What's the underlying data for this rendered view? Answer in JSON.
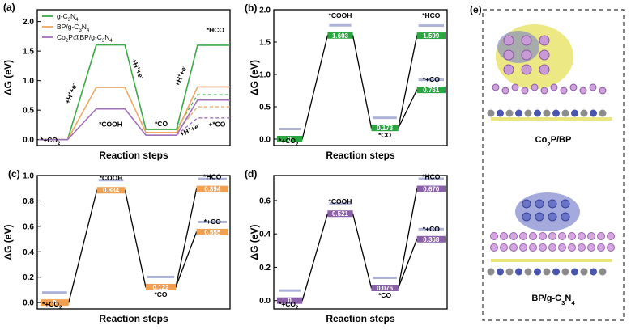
{
  "colors": {
    "g_c3n4": "#3daa48",
    "bp": "#f0a860",
    "co2p": "#a070b8",
    "panel_b": "#2aa640",
    "panel_c": "#f0a050",
    "panel_d": "#8a60a8"
  },
  "chart_data": [
    {
      "panel": "(a)",
      "type": "line",
      "subtype": "free-energy-step-diagram",
      "xlabel": "Reaction steps",
      "ylabel": "ΔG (eV)",
      "ylim": [
        -0.1,
        2.2
      ],
      "yticks": [
        "0.0",
        "0.5",
        "1.0",
        "1.5",
        "2.0"
      ],
      "steps": [
        "*+CO2",
        "*COOH",
        "*CO",
        "*HCO"
      ],
      "series": [
        {
          "name": "g-C3N4",
          "values": [
            0,
            1.603,
            0.173,
            1.599
          ],
          "alt_value": 0.761,
          "color": "#3daa48"
        },
        {
          "name": "BP/g-C3N4",
          "values": [
            0,
            0.884,
            0.122,
            0.894
          ],
          "alt_value": 0.555,
          "color": "#f0a860"
        },
        {
          "name": "Co2P@BP/g-C3N4",
          "values": [
            0,
            0.521,
            0.076,
            0.67
          ],
          "alt_value": 0.368,
          "color": "#a070b8"
        }
      ],
      "annotations": [
        "*+CO2",
        "*COOH",
        "*CO",
        "*HCO",
        "+H⁺+e⁻",
        "+H⁺+e⁻",
        "+H⁺+e⁻",
        "+H⁺+e⁻",
        "+*CO"
      ],
      "legend_position": "top-left"
    },
    {
      "panel": "(b)",
      "type": "line",
      "subtype": "free-energy-step-diagram",
      "xlabel": "Reaction steps",
      "ylabel": "ΔG (eV)",
      "ylim": [
        -0.1,
        2.0
      ],
      "yticks": [
        "0.0",
        "0.5",
        "1.0",
        "1.5",
        "2.0"
      ],
      "levels": [
        {
          "label": "*+CO2",
          "value": 0,
          "text": "0"
        },
        {
          "label": "*COOH",
          "value": 1.603,
          "text": "1.603"
        },
        {
          "label": "*CO",
          "value": 0.173,
          "text": "0.173"
        },
        {
          "label": "*HCO",
          "value": 1.599,
          "text": "1.599"
        },
        {
          "label": "*+CO",
          "value": 0.761,
          "text": "0.761"
        }
      ],
      "color": "#2aa640"
    },
    {
      "panel": "(c)",
      "type": "line",
      "subtype": "free-energy-step-diagram",
      "xlabel": "Reaction steps",
      "ylabel": "ΔG (eV)",
      "ylim": [
        -0.05,
        1.0
      ],
      "yticks": [
        "0.0",
        "0.2",
        "0.4",
        "0.6",
        "0.8",
        "1.0"
      ],
      "levels": [
        {
          "label": "*+CO2",
          "value": 0,
          "text": "0"
        },
        {
          "label": "*COOH",
          "value": 0.884,
          "text": "0.884"
        },
        {
          "label": "*CO",
          "value": 0.122,
          "text": "0.122"
        },
        {
          "label": "*HCO",
          "value": 0.894,
          "text": "0.894"
        },
        {
          "label": "*+CO",
          "value": 0.555,
          "text": "0.555"
        }
      ],
      "color": "#f0a050"
    },
    {
      "panel": "(d)",
      "type": "line",
      "subtype": "free-energy-step-diagram",
      "xlabel": "Reaction steps",
      "ylabel": "ΔG (eV)",
      "ylim": [
        -0.05,
        0.75
      ],
      "yticks": [
        "0.0",
        "0.2",
        "0.4",
        "0.6"
      ],
      "levels": [
        {
          "label": "*+CO2",
          "value": 0,
          "text": "0"
        },
        {
          "label": "*COOH",
          "value": 0.521,
          "text": "0.521"
        },
        {
          "label": "*CO",
          "value": 0.076,
          "text": "0.076"
        },
        {
          "label": "*HCO",
          "value": 0.67,
          "text": "0.670"
        },
        {
          "label": "*+CO",
          "value": 0.368,
          "text": "0.368"
        }
      ],
      "color": "#8a60a8"
    }
  ],
  "panel_e": {
    "label": "(e)",
    "caption_top": "Co2P/BP",
    "caption_bottom": "BP/g-C3N4"
  }
}
